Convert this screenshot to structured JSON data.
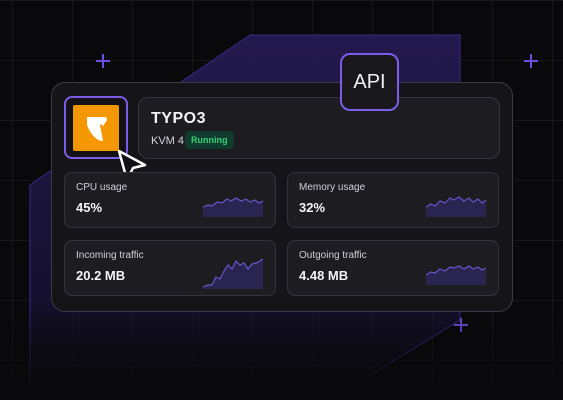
{
  "app": {
    "name": "TYPO3",
    "plan": "KVM 4",
    "status": "Running",
    "logo_icon": "typo3-logo-icon"
  },
  "api_badge": {
    "label": "API"
  },
  "metrics": [
    {
      "label": "CPU usage",
      "value": "45%"
    },
    {
      "label": "Memory usage",
      "value": "32%"
    },
    {
      "label": "Incoming traffic",
      "value": "20.2 MB"
    },
    {
      "label": "Outgoing traffic",
      "value": "4.48 MB"
    }
  ],
  "colors": {
    "accent": "#7c5ce8",
    "logo_orange": "#f49700",
    "status_green": "#33d17a",
    "background": "#09090b"
  }
}
